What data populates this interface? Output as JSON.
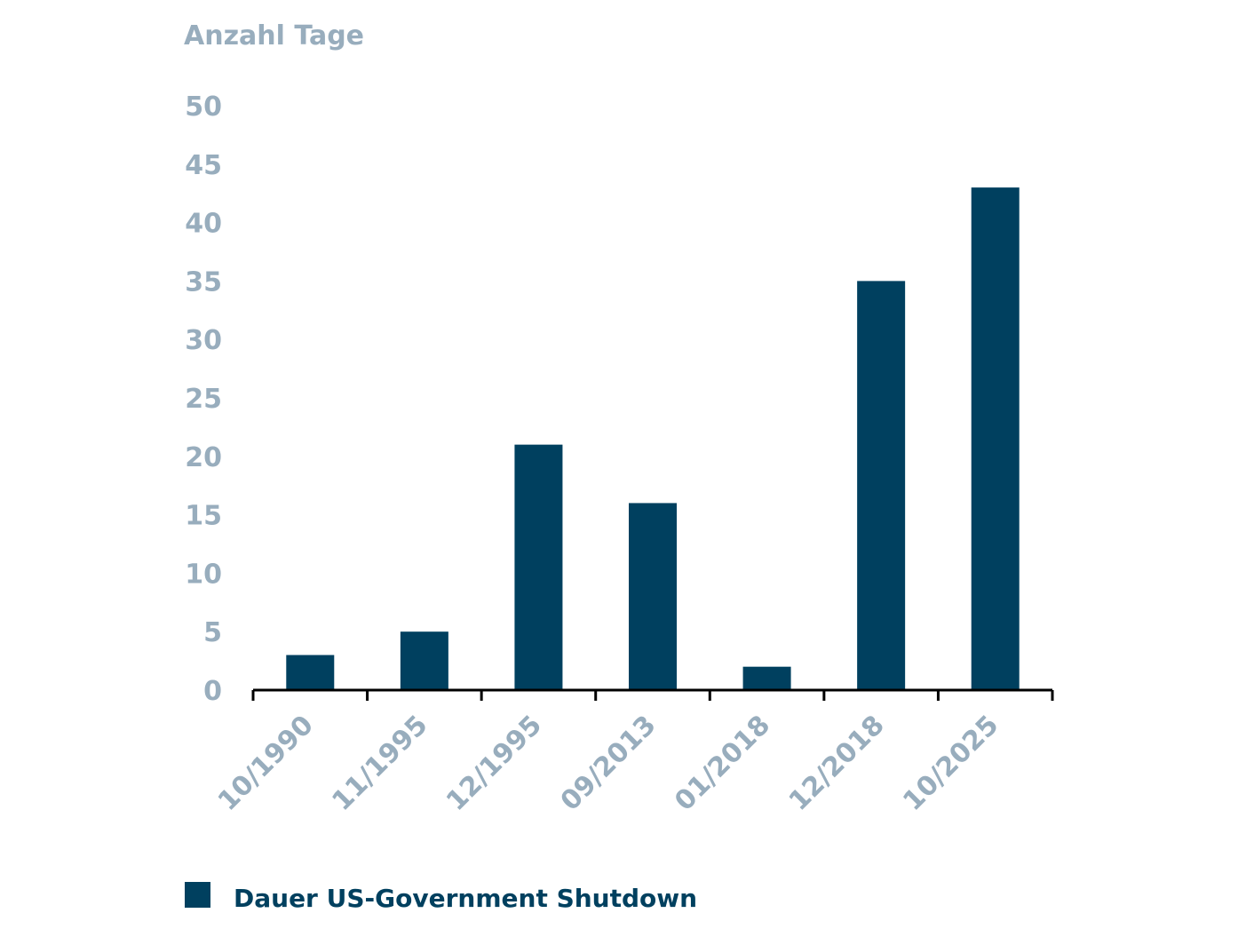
{
  "chart_data": {
    "type": "bar",
    "title": "",
    "ylabel": "Anzahl Tage",
    "xlabel": "",
    "categories": [
      "10/1990",
      "11/1995",
      "12/1995",
      "09/2013",
      "01/2018",
      "12/2018",
      "10/2025"
    ],
    "series": [
      {
        "name": "Dauer US-Government Shutdown",
        "values": [
          3,
          5,
          21,
          16,
          2,
          35,
          43
        ],
        "color": "#00405f"
      }
    ],
    "ylim": [
      0,
      50
    ],
    "yticks": [
      0,
      5,
      10,
      15,
      20,
      25,
      30,
      35,
      40,
      45,
      50
    ],
    "grid": false,
    "legend": "bottom-left"
  }
}
